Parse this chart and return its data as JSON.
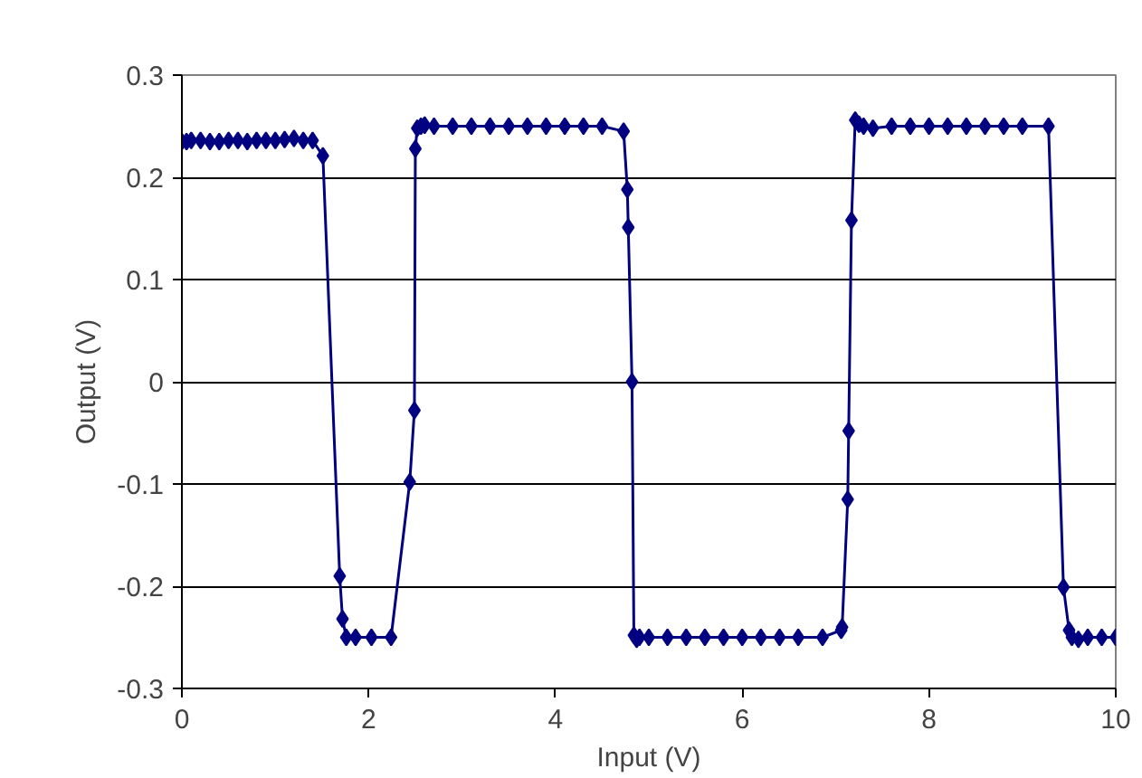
{
  "chart_data": {
    "type": "line",
    "xlabel": "Input (V)",
    "ylabel": "Output (V)",
    "xlim": [
      0,
      10
    ],
    "ylim": [
      -0.3,
      0.3
    ],
    "xticks": [
      0,
      2,
      4,
      6,
      8,
      10
    ],
    "yticks": [
      -0.3,
      -0.2,
      -0.1,
      0,
      0.1,
      0.2,
      0.3
    ],
    "grid": "y",
    "marker": "diamond",
    "line_style": "solid",
    "series": [
      {
        "color": "#000080",
        "x": [
          0,
          0.05,
          0.1,
          0.2,
          0.3,
          0.4,
          0.5,
          0.6,
          0.7,
          0.8,
          0.9,
          1.0,
          1.1,
          1.2,
          1.3,
          1.4,
          1.51,
          1.69,
          1.72,
          1.76,
          1.86,
          2.03,
          2.24,
          2.44,
          2.49,
          2.5,
          2.52,
          2.56,
          2.6,
          2.7,
          2.9,
          3.1,
          3.3,
          3.5,
          3.7,
          3.9,
          4.1,
          4.3,
          4.5,
          4.73,
          4.77,
          4.78,
          4.82,
          4.84,
          4.87,
          4.9,
          5.0,
          5.2,
          5.4,
          5.6,
          5.8,
          6.0,
          6.2,
          6.4,
          6.6,
          6.86,
          7.06,
          7.07,
          7.13,
          7.14,
          7.17,
          7.21,
          7.25,
          7.3,
          7.4,
          7.6,
          7.8,
          8.0,
          8.2,
          8.4,
          8.6,
          8.8,
          9.0,
          9.28,
          9.44,
          9.5,
          9.53,
          9.6,
          9.7,
          9.85,
          10.0
        ],
        "values": [
          0.235,
          0.235,
          0.236,
          0.236,
          0.235,
          0.235,
          0.236,
          0.236,
          0.235,
          0.236,
          0.236,
          0.236,
          0.237,
          0.238,
          0.236,
          0.236,
          0.221,
          -0.19,
          -0.232,
          -0.25,
          -0.25,
          -0.25,
          -0.25,
          -0.098,
          -0.028,
          0.228,
          0.248,
          0.25,
          0.251,
          0.25,
          0.25,
          0.25,
          0.25,
          0.25,
          0.25,
          0.25,
          0.25,
          0.25,
          0.25,
          0.245,
          0.188,
          0.151,
          0,
          -0.248,
          -0.252,
          -0.25,
          -0.25,
          -0.25,
          -0.25,
          -0.25,
          -0.25,
          -0.25,
          -0.25,
          -0.25,
          -0.25,
          -0.25,
          -0.243,
          -0.24,
          -0.115,
          -0.048,
          0.158,
          0.256,
          0.252,
          0.25,
          0.248,
          0.25,
          0.25,
          0.25,
          0.25,
          0.25,
          0.25,
          0.25,
          0.25,
          0.25,
          -0.201,
          -0.243,
          -0.25,
          -0.252,
          -0.25,
          -0.25,
          -0.25
        ]
      }
    ]
  }
}
